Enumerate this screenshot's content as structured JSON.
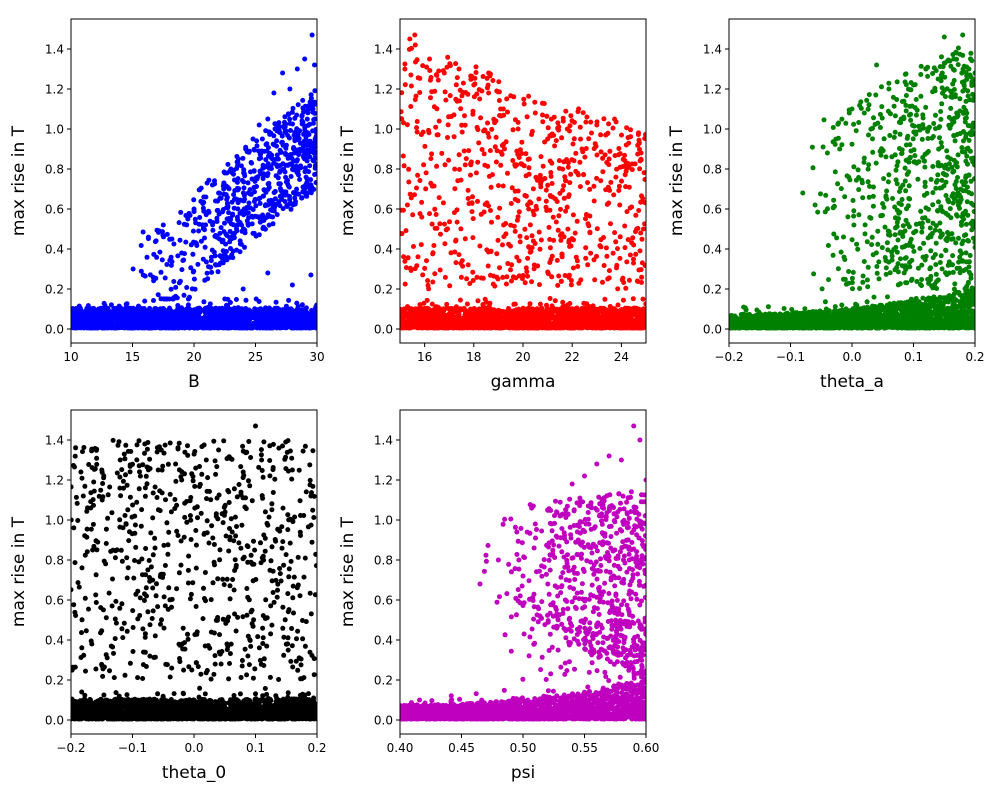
{
  "figure": {
    "background": "#ffffff"
  },
  "chart_data": [
    {
      "type": "scatter",
      "xlabel": "B",
      "ylabel": "max rise in T",
      "xlim": [
        10,
        30
      ],
      "ylim": [
        -0.07,
        1.55
      ],
      "xticks": [
        10,
        15,
        20,
        25,
        30
      ],
      "xtick_labels": [
        "10",
        "15",
        "20",
        "25",
        "30"
      ],
      "yticks": [
        0.0,
        0.2,
        0.4,
        0.6,
        0.8,
        1.0,
        1.2,
        1.4
      ],
      "ytick_labels": [
        "0.0",
        "0.2",
        "0.4",
        "0.6",
        "0.8",
        "1.0",
        "1.2",
        "1.4"
      ],
      "color": "#0000ff",
      "grid": false,
      "distribution": {
        "baseline_points": 2200,
        "baseline_y": [
          0.0,
          0.15
        ],
        "rise_points": 700,
        "rise_onset_x": 16,
        "trend": "rise magnitude increases with B; ~0.3 near B=17, ~0.9 at B=30, max ~1.47"
      },
      "series": [
        {
          "points": [
            [
              17.5,
              0.52
            ],
            [
              18.2,
              0.45
            ],
            [
              19.0,
              0.38
            ],
            [
              19.5,
              0.55
            ],
            [
              20.0,
              0.6
            ],
            [
              20.8,
              0.66
            ],
            [
              21.5,
              0.72
            ],
            [
              22.0,
              0.68
            ],
            [
              22.5,
              0.78
            ],
            [
              23.0,
              0.8
            ],
            [
              23.6,
              0.85
            ],
            [
              24.2,
              0.9
            ],
            [
              24.8,
              0.95
            ],
            [
              25.3,
              1.02
            ],
            [
              26.0,
              1.05
            ],
            [
              26.5,
              1.18
            ],
            [
              27.2,
              1.28
            ],
            [
              27.8,
              1.2
            ],
            [
              28.4,
              1.3
            ],
            [
              29.0,
              1.35
            ],
            [
              29.6,
              1.47
            ],
            [
              29.8,
              1.32
            ],
            [
              22.5,
              0.15
            ],
            [
              24.0,
              0.2
            ],
            [
              26.0,
              0.28
            ],
            [
              28.0,
              0.22
            ],
            [
              29.5,
              0.27
            ]
          ]
        }
      ]
    },
    {
      "type": "scatter",
      "xlabel": "gamma",
      "ylabel": "max rise in T",
      "xlim": [
        15,
        25
      ],
      "ylim": [
        -0.07,
        1.55
      ],
      "xticks": [
        16,
        18,
        20,
        22,
        24
      ],
      "xtick_labels": [
        "16",
        "18",
        "20",
        "22",
        "24"
      ],
      "yticks": [
        0.0,
        0.2,
        0.4,
        0.6,
        0.8,
        1.0,
        1.2,
        1.4
      ],
      "ytick_labels": [
        "0.0",
        "0.2",
        "0.4",
        "0.6",
        "0.8",
        "1.0",
        "1.2",
        "1.4"
      ],
      "color": "#ff0000",
      "grid": false,
      "distribution": {
        "baseline_points": 2200,
        "baseline_y": [
          0.0,
          0.18
        ],
        "rise_points": 700,
        "trend": "rise magnitude decreases with gamma; up to ~1.47 near gamma=15-16, ~0.8 near gamma=25"
      },
      "series": [
        {
          "points": [
            [
              15.2,
              1.3
            ],
            [
              15.4,
              1.45
            ],
            [
              15.6,
              1.47
            ],
            [
              15.3,
              0.62
            ],
            [
              16.2,
              1.35
            ],
            [
              16.8,
              1.28
            ],
            [
              17.4,
              1.3
            ],
            [
              18.0,
              1.22
            ],
            [
              18.6,
              1.18
            ],
            [
              19.2,
              1.1
            ],
            [
              19.8,
              1.0
            ],
            [
              20.5,
              1.08
            ],
            [
              21.0,
              0.95
            ],
            [
              21.8,
              1.0
            ],
            [
              22.4,
              0.9
            ],
            [
              23.0,
              1.02
            ],
            [
              23.5,
              0.85
            ],
            [
              24.2,
              0.92
            ],
            [
              24.8,
              0.88
            ],
            [
              24.9,
              0.5
            ],
            [
              24.5,
              0.42
            ]
          ]
        }
      ]
    },
    {
      "type": "scatter",
      "xlabel": "theta_a",
      "ylabel": "max rise in T",
      "xlim": [
        -0.2,
        0.2
      ],
      "ylim": [
        -0.07,
        1.55
      ],
      "xticks": [
        -0.2,
        -0.1,
        0.0,
        0.1,
        0.2
      ],
      "xtick_labels": [
        "−0.2",
        "−0.1",
        "0.0",
        "0.1",
        "0.2"
      ],
      "yticks": [
        0.0,
        0.2,
        0.4,
        0.6,
        0.8,
        1.0,
        1.2,
        1.4
      ],
      "ytick_labels": [
        "0.0",
        "0.2",
        "0.4",
        "0.6",
        "0.8",
        "1.0",
        "1.2",
        "1.4"
      ],
      "color": "#008000",
      "grid": false,
      "distribution": {
        "baseline_points": 2200,
        "baseline_y": [
          0.0,
          0.12
        ],
        "baseline_slope": "baseline widens toward theta_a=0.2 (up to ~0.25)",
        "rise_points": 700,
        "rise_onset_x": -0.08,
        "trend": "rise points concentrated at theta_a > 0, density increases toward 0.2"
      },
      "series": [
        {
          "points": [
            [
              -0.08,
              0.68
            ],
            [
              -0.06,
              0.62
            ],
            [
              -0.04,
              0.88
            ],
            [
              -0.02,
              0.9
            ],
            [
              0.0,
              1.1
            ],
            [
              0.02,
              1.08
            ],
            [
              0.04,
              1.32
            ],
            [
              0.06,
              1.2
            ],
            [
              0.08,
              1.05
            ],
            [
              0.1,
              1.22
            ],
            [
              0.12,
              1.3
            ],
            [
              0.14,
              1.25
            ],
            [
              0.15,
              1.46
            ],
            [
              0.17,
              1.38
            ],
            [
              0.18,
              1.47
            ],
            [
              0.19,
              1.3
            ],
            [
              0.2,
              1.28
            ]
          ]
        }
      ]
    },
    {
      "type": "scatter",
      "xlabel": "theta_0",
      "ylabel": "max rise in T",
      "xlim": [
        -0.2,
        0.2
      ],
      "ylim": [
        -0.07,
        1.55
      ],
      "xticks": [
        -0.2,
        -0.1,
        0.0,
        0.1,
        0.2
      ],
      "xtick_labels": [
        "−0.2",
        "−0.1",
        "0.0",
        "0.1",
        "0.2"
      ],
      "yticks": [
        0.0,
        0.2,
        0.4,
        0.6,
        0.8,
        1.0,
        1.2,
        1.4
      ],
      "ytick_labels": [
        "0.0",
        "0.2",
        "0.4",
        "0.6",
        "0.8",
        "1.0",
        "1.2",
        "1.4"
      ],
      "color": "#000000",
      "grid": false,
      "distribution": {
        "baseline_points": 2200,
        "baseline_y": [
          0.0,
          0.15
        ],
        "rise_points": 700,
        "trend": "no dependence on theta_0; rise points spread uniformly between 0.2 and 1.47"
      },
      "series": [
        {
          "points": [
            [
              -0.18,
              1.12
            ],
            [
              -0.15,
              1.25
            ],
            [
              -0.12,
              1.3
            ],
            [
              -0.06,
              1.34
            ],
            [
              -0.02,
              1.2
            ],
            [
              0.02,
              1.3
            ],
            [
              0.04,
              1.35
            ],
            [
              0.08,
              1.24
            ],
            [
              0.1,
              1.47
            ],
            [
              0.11,
              1.3
            ],
            [
              0.16,
              1.25
            ],
            [
              0.19,
              1.12
            ]
          ]
        }
      ]
    },
    {
      "type": "scatter",
      "xlabel": "psi",
      "ylabel": "max rise in T",
      "xlim": [
        0.4,
        0.6
      ],
      "ylim": [
        -0.07,
        1.55
      ],
      "xticks": [
        0.4,
        0.45,
        0.5,
        0.55,
        0.6
      ],
      "xtick_labels": [
        "0.40",
        "0.45",
        "0.50",
        "0.55",
        "0.60"
      ],
      "yticks": [
        0.0,
        0.2,
        0.4,
        0.6,
        0.8,
        1.0,
        1.2,
        1.4
      ],
      "ytick_labels": [
        "0.0",
        "0.2",
        "0.4",
        "0.6",
        "0.8",
        "1.0",
        "1.2",
        "1.4"
      ],
      "color": "#bf00bf",
      "grid": false,
      "distribution": {
        "baseline_points": 2200,
        "baseline_y": [
          0.0,
          0.12
        ],
        "baseline_slope": "baseline widens toward psi=0.6 (up to ~0.2)",
        "rise_points": 700,
        "rise_onset_x": 0.46,
        "trend": "rise magnitude increases with psi; ~0.7 at psi=0.47, up to ~1.47 near psi=0.59"
      },
      "series": [
        {
          "points": [
            [
              0.465,
              0.68
            ],
            [
              0.48,
              0.8
            ],
            [
              0.5,
              0.72
            ],
            [
              0.51,
              0.98
            ],
            [
              0.52,
              1.05
            ],
            [
              0.53,
              1.02
            ],
            [
              0.54,
              1.18
            ],
            [
              0.55,
              1.22
            ],
            [
              0.56,
              1.28
            ],
            [
              0.57,
              1.32
            ],
            [
              0.58,
              1.3
            ],
            [
              0.59,
              1.47
            ],
            [
              0.595,
              1.4
            ],
            [
              0.6,
              1.2
            ]
          ]
        }
      ]
    }
  ]
}
